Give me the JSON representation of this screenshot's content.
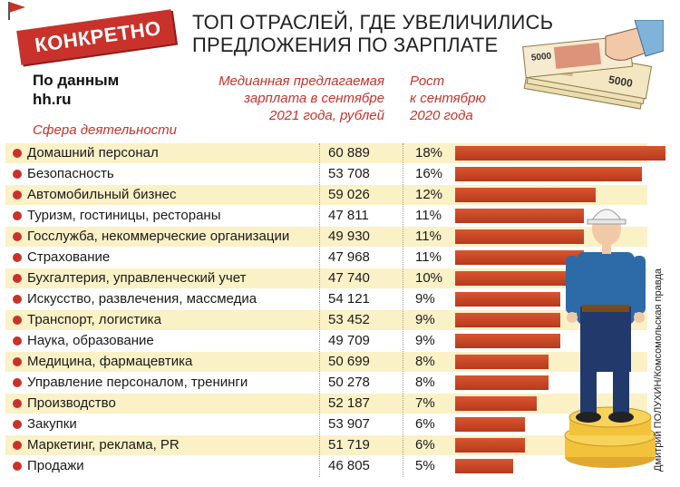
{
  "badge": "КОНКРЕТНО",
  "title_lines": [
    "ТОП ОТРАСЛЕЙ, ГДЕ УВЕЛИЧИЛИСЬ",
    "ПРЕДЛОЖЕНИЯ ПО ЗАРПЛАТЕ"
  ],
  "source_lines": [
    "По данным",
    "hh.ru"
  ],
  "headers": {
    "sphere": "Сфера деятельности",
    "salary_lines": [
      "Медианная предлагаемая",
      "зарплата в сентябре",
      "2021 года, рублей"
    ],
    "growth_lines": [
      "Рост",
      "к сентябрю",
      "2020 года"
    ]
  },
  "credit": "Дмитрий ПОЛУХИН/Комсомольская правда",
  "money_labels": [
    "5000",
    "5000"
  ],
  "colors": {
    "accent": "#c8322a",
    "bar": "#c8461f",
    "shade": "#fbf1c7"
  },
  "chart_data": {
    "type": "bar",
    "orientation": "horizontal",
    "categories": [
      "Домашний персонал",
      "Безопасность",
      "Автомобильный бизнес",
      "Туризм, гостиницы, рестораны",
      "Госслужба, некоммерческие организации",
      "Страхование",
      "Бухгалтерия, управленческий учет",
      "Искусство, развлечения, массмедиа",
      "Транспорт, логистика",
      "Наука, образование",
      "Медицина, фармацевтика",
      "Управление персоналом, тренинги",
      "Производство",
      "Закупки",
      "Маркетинг, реклама, PR",
      "Продажи"
    ],
    "salaries": [
      "60 889",
      "53 708",
      "59 026",
      "47 811",
      "49 930",
      "47 968",
      "47 740",
      "54 121",
      "53 452",
      "49 709",
      "50 699",
      "50 278",
      "52 187",
      "53 907",
      "51 719",
      "46 805"
    ],
    "growth_labels": [
      "18%",
      "16%",
      "12%",
      "11%",
      "11%",
      "11%",
      "10%",
      "9%",
      "9%",
      "9%",
      "8%",
      "8%",
      "7%",
      "6%",
      "6%",
      "5%"
    ],
    "values": [
      18,
      16,
      12,
      11,
      11,
      11,
      10,
      9,
      9,
      9,
      8,
      8,
      7,
      6,
      6,
      5
    ],
    "xlim": [
      0,
      18
    ]
  }
}
